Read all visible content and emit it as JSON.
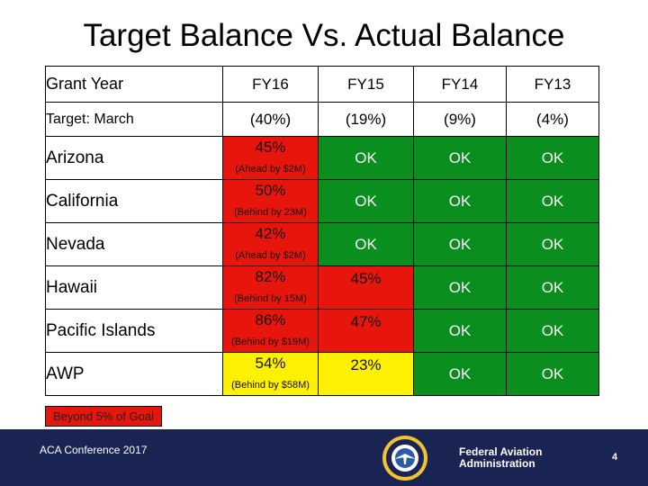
{
  "title": "Target Balance Vs. Actual Balance",
  "colors": {
    "ok": "#0a8f1e",
    "behind": "#e8150c",
    "partial": "#fdf000",
    "footer": "#1a2452"
  },
  "header": {
    "label": "Grant Year",
    "years": [
      "FY16",
      "FY15",
      "FY14",
      "FY13"
    ]
  },
  "target": {
    "label": "Target: March",
    "values": [
      "(40%)",
      "(19%)",
      "(9%)",
      "(4%)"
    ]
  },
  "rows": [
    {
      "region": "Arizona",
      "fy16": {
        "pct": "45%",
        "note": "(Ahead by $2M)"
      },
      "fy15": "OK",
      "fy14": "OK",
      "fy13": "OK"
    },
    {
      "region": "California",
      "fy16": {
        "pct": "50%",
        "note": "(Behind by 23M)"
      },
      "fy15": "OK",
      "fy14": "OK",
      "fy13": "OK"
    },
    {
      "region": "Nevada",
      "fy16": {
        "pct": "42%",
        "note": "(Ahead by $2M)"
      },
      "fy15": "OK",
      "fy14": "OK",
      "fy13": "OK"
    },
    {
      "region": "Hawaii",
      "fy16": {
        "pct": "82%",
        "note": "(Behind by 15M)"
      },
      "fy15": "45%",
      "fy14": "OK",
      "fy13": "OK"
    },
    {
      "region": "Pacific Islands",
      "fy16": {
        "pct": "86%",
        "note": "(Behind by $19M)"
      },
      "fy15": "47%",
      "fy14": "OK",
      "fy13": "OK"
    },
    {
      "region": "AWP",
      "fy16": {
        "pct": "54%",
        "note": "(Behind by $58M)"
      },
      "fy15": "23%",
      "fy14": "OK",
      "fy13": "OK"
    }
  ],
  "legend": "Beyond 5% of Goal",
  "footer": {
    "conference": "ACA Conference 2017",
    "agency_line1": "Federal Aviation",
    "agency_line2": "Administration",
    "page_number": "4"
  }
}
